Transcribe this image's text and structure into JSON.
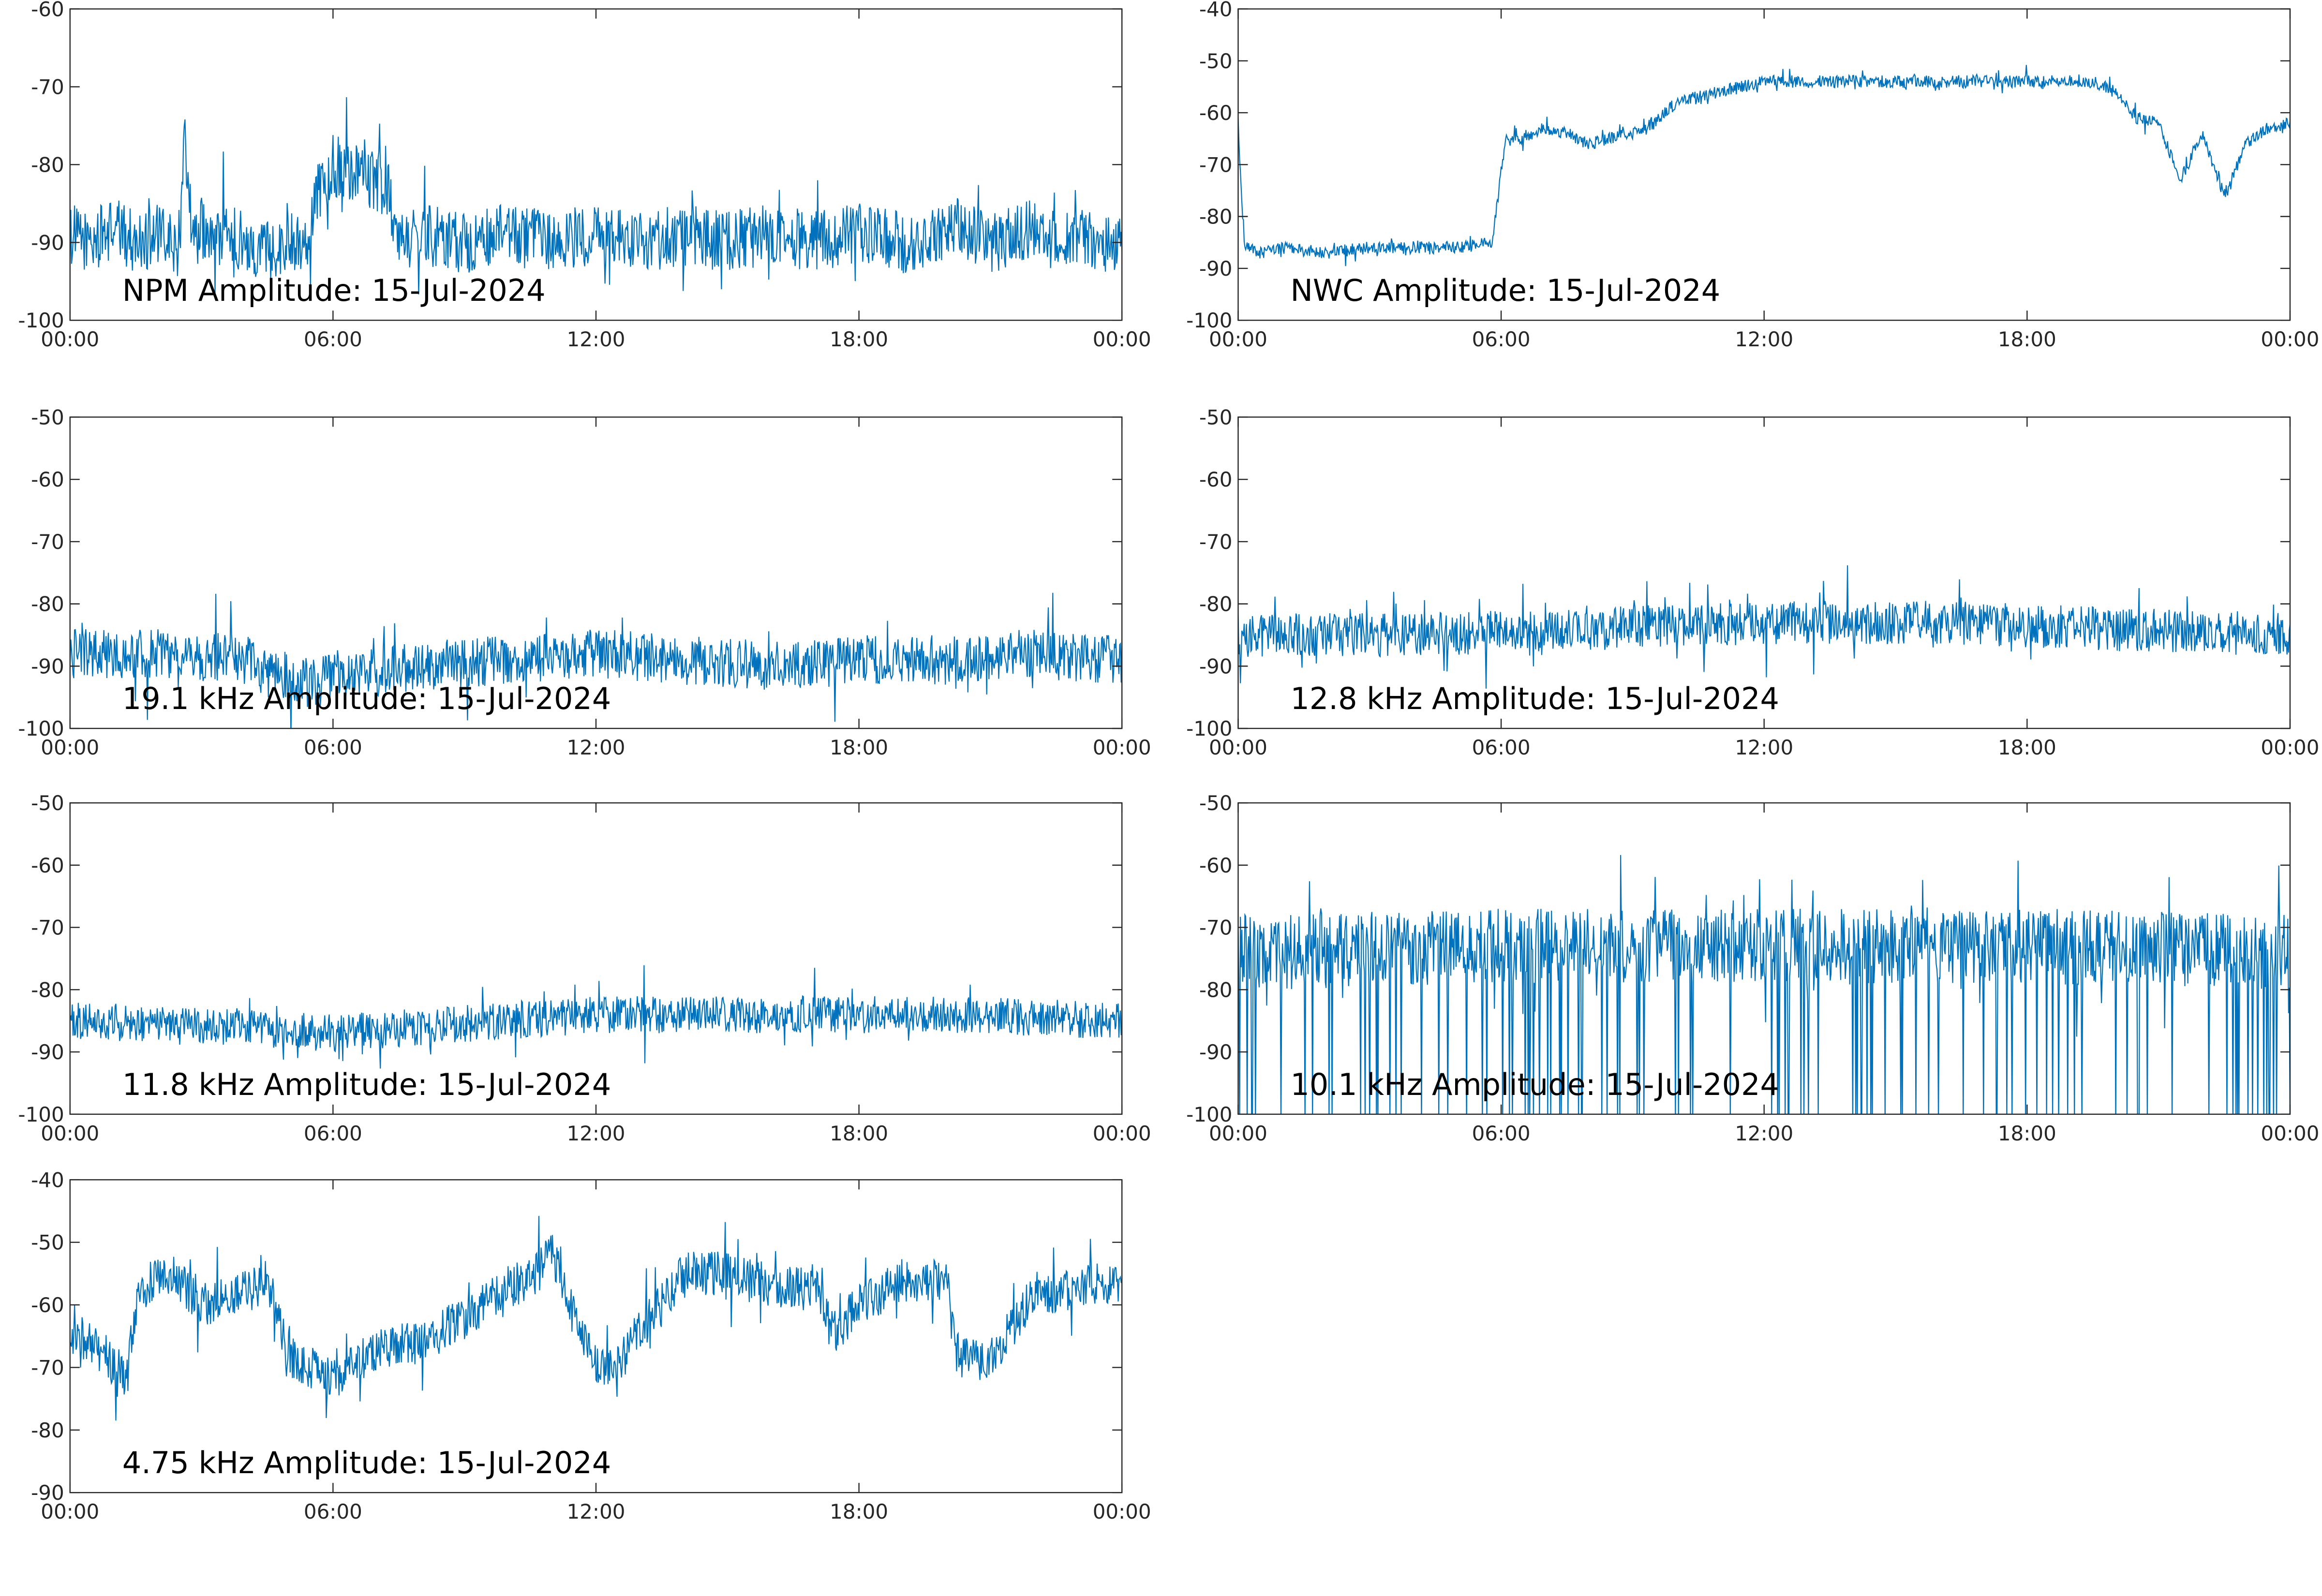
{
  "colors": {
    "series": "#0072BD",
    "axis": "#262626",
    "background": "#ffffff"
  },
  "chart_data": [
    {
      "type": "line",
      "title": "NPM Amplitude: 15-Jul-2024",
      "xticks": [
        "00:00",
        "06:00",
        "12:00",
        "18:00",
        "00:00"
      ],
      "xlim_hours": [
        0,
        24
      ],
      "ylim": [
        -100,
        -60
      ],
      "yticks": [
        -60,
        -70,
        -80,
        -90,
        -100
      ],
      "grid": false,
      "series": [
        {
          "values_hours": [
            0,
            0.5,
            1,
            1.5,
            2,
            2.5,
            2.6,
            2.8,
            3,
            3.2,
            3.5,
            4,
            4.5,
            5,
            5.5,
            5.6,
            6,
            6.5,
            7,
            7.3,
            7.4,
            8,
            9,
            10,
            11,
            12,
            13,
            14,
            15,
            16,
            17,
            18,
            19,
            19.5,
            20,
            20.2,
            20.5,
            21,
            21.5,
            22,
            22.5,
            23,
            23.5,
            24
          ],
          "values": [
            -89,
            -90,
            -88,
            -90,
            -89,
            -91,
            -74,
            -90,
            -88,
            -90,
            -89,
            -90,
            -91,
            -90,
            -89,
            -84,
            -80,
            -81,
            -82,
            -83,
            -90,
            -89,
            -90,
            -89,
            -90,
            -89,
            -90,
            -89,
            -90,
            -89,
            -90,
            -89,
            -90,
            -90,
            -89,
            -88,
            -89,
            -90,
            -89,
            -88,
            -90,
            -89,
            -90,
            -90
          ],
          "noise": 4
        }
      ]
    },
    {
      "type": "line",
      "title": "NWC Amplitude: 15-Jul-2024",
      "xticks": [
        "00:00",
        "06:00",
        "12:00",
        "18:00",
        "00:00"
      ],
      "xlim_hours": [
        0,
        24
      ],
      "ylim": [
        -100,
        -40
      ],
      "yticks": [
        -40,
        -50,
        -60,
        -70,
        -80,
        -90,
        -100
      ],
      "grid": false,
      "series": [
        {
          "values_hours": [
            0,
            0.05,
            0.15,
            0.5,
            1,
            2,
            3,
            4,
            5,
            5.8,
            6.1,
            6.4,
            7,
            7.5,
            8,
            8.5,
            9,
            9.5,
            10,
            11,
            12,
            13,
            14,
            15,
            16,
            17,
            18,
            19,
            19.5,
            20,
            20.5,
            21,
            21.5,
            22,
            22.5,
            23,
            23.5,
            24
          ],
          "values": [
            -62,
            -72,
            -86,
            -87,
            -86,
            -87,
            -86,
            -86,
            -86,
            -85,
            -65,
            -65,
            -63,
            -64,
            -66,
            -65,
            -64,
            -62,
            -58,
            -56,
            -54,
            -54,
            -54,
            -54,
            -54,
            -54,
            -54,
            -54,
            -54,
            -56,
            -61,
            -62,
            -73,
            -64,
            -76,
            -66,
            -63,
            -62
          ],
          "noise": 1.2
        }
      ]
    },
    {
      "type": "line",
      "title": "19.1 kHz Amplitude: 15-Jul-2024",
      "xticks": [
        "00:00",
        "06:00",
        "12:00",
        "18:00",
        "00:00"
      ],
      "xlim_hours": [
        0,
        24
      ],
      "ylim": [
        -100,
        -50
      ],
      "yticks": [
        -50,
        -60,
        -70,
        -80,
        -90,
        -100
      ],
      "grid": false,
      "series": [
        {
          "values_hours": [
            0,
            2,
            4,
            5,
            6,
            8,
            10,
            12,
            14,
            16,
            18,
            20,
            22,
            24
          ],
          "values": [
            -88,
            -88,
            -89,
            -93,
            -92,
            -90,
            -89,
            -88,
            -89,
            -90,
            -89,
            -89,
            -88,
            -89
          ],
          "noise": 4
        }
      ]
    },
    {
      "type": "line",
      "title": "12.8 kHz Amplitude: 15-Jul-2024",
      "xticks": [
        "00:00",
        "06:00",
        "12:00",
        "18:00",
        "00:00"
      ],
      "xlim_hours": [
        0,
        24
      ],
      "ylim": [
        -100,
        -50
      ],
      "yticks": [
        -50,
        -60,
        -70,
        -80,
        -90,
        -100
      ],
      "grid": false,
      "series": [
        {
          "values_hours": [
            0,
            4,
            8,
            12,
            16,
            20,
            24
          ],
          "values": [
            -85,
            -85,
            -84,
            -83,
            -83,
            -84,
            -85
          ],
          "noise": 3.5
        }
      ]
    },
    {
      "type": "line",
      "title": "11.8 kHz Amplitude: 15-Jul-2024",
      "xticks": [
        "00:00",
        "06:00",
        "12:00",
        "18:00",
        "00:00"
      ],
      "xlim_hours": [
        0,
        24
      ],
      "ylim": [
        -100,
        -50
      ],
      "yticks": [
        -50,
        -60,
        -70,
        -80,
        -90,
        -100
      ],
      "grid": false,
      "series": [
        {
          "values_hours": [
            0,
            4,
            6,
            10,
            12,
            16,
            20,
            24
          ],
          "values": [
            -85,
            -86,
            -87,
            -85,
            -84,
            -84,
            -84,
            -85
          ],
          "noise": 3
        }
      ]
    },
    {
      "type": "line",
      "title": "10.1 kHz Amplitude: 15-Jul-2024",
      "xticks": [
        "00:00",
        "06:00",
        "12:00",
        "18:00",
        "00:00"
      ],
      "xlim_hours": [
        0,
        24
      ],
      "ylim": [
        -100,
        -50
      ],
      "yticks": [
        -50,
        -60,
        -70,
        -80,
        -90,
        -100
      ],
      "grid": false,
      "series": [
        {
          "values_hours": [
            0,
            6,
            12,
            18,
            24
          ],
          "values": [
            -74,
            -73,
            -73,
            -73,
            -74
          ],
          "noise": 6,
          "dropout_floor": -100
        }
      ]
    },
    {
      "type": "line",
      "title": "4.75 kHz Amplitude: 15-Jul-2024",
      "xticks": [
        "00:00",
        "06:00",
        "12:00",
        "18:00",
        "00:00"
      ],
      "xlim_hours": [
        0,
        24
      ],
      "ylim": [
        -90,
        -40
      ],
      "yticks": [
        -40,
        -50,
        -60,
        -70,
        -80,
        -90
      ],
      "grid": false,
      "series": [
        {
          "values_hours": [
            0,
            0.8,
            1.3,
            1.5,
            2,
            2.5,
            3,
            4,
            4.5,
            5,
            5.5,
            6,
            7,
            8,
            9,
            10,
            10.5,
            11,
            11.5,
            12,
            12.5,
            13,
            13.5,
            14,
            15,
            16,
            17,
            17.5,
            18,
            19,
            20,
            20.2,
            21,
            22,
            22.5,
            23,
            24
          ],
          "values": [
            -64,
            -68,
            -72,
            -60,
            -55,
            -56,
            -60,
            -58,
            -56,
            -68,
            -70,
            -72,
            -67,
            -66,
            -62,
            -57,
            -56,
            -52,
            -62,
            -69,
            -70,
            -64,
            -60,
            -55,
            -55,
            -57,
            -57,
            -64,
            -60,
            -56,
            -56,
            -68,
            -69,
            -58,
            -58,
            -57,
            -56
          ],
          "noise": 3.5
        }
      ]
    }
  ]
}
